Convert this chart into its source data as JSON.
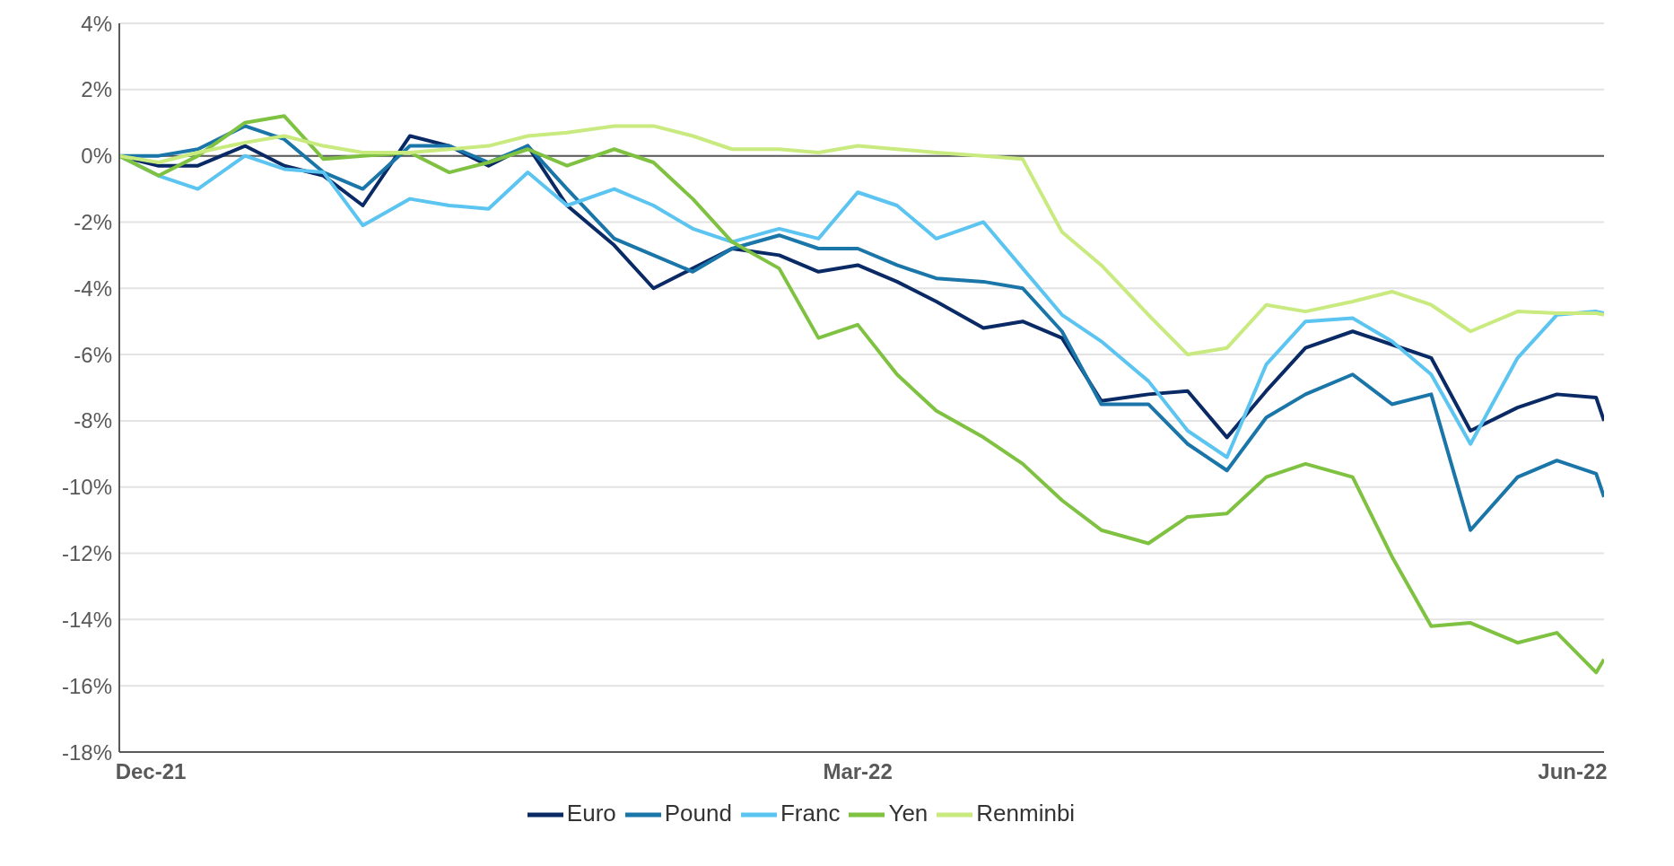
{
  "chart_data": {
    "type": "line",
    "x": [
      "2021-12-27",
      "2022-01-01",
      "2022-01-06",
      "2022-01-12",
      "2022-01-17",
      "2022-01-22",
      "2022-01-27",
      "2022-02-02",
      "2022-02-07",
      "2022-02-12",
      "2022-02-17",
      "2022-02-22",
      "2022-02-28",
      "2022-03-05",
      "2022-03-10",
      "2022-03-15",
      "2022-03-21",
      "2022-03-26",
      "2022-03-31",
      "2022-04-05",
      "2022-04-10",
      "2022-04-16",
      "2022-04-21",
      "2022-04-26",
      "2022-05-01",
      "2022-05-07",
      "2022-05-12",
      "2022-05-17",
      "2022-05-22",
      "2022-05-27",
      "2022-06-02",
      "2022-06-07",
      "2022-06-12",
      "2022-06-17",
      "2022-06-23",
      "2022-06-28",
      "2022-07-03",
      "2022-07-04"
    ],
    "series": [
      {
        "name": "Euro",
        "color": "#0a2a66",
        "values": [
          0,
          -0.3,
          -0.3,
          0.3,
          -0.3,
          -0.6,
          -1.5,
          0.6,
          0.3,
          -0.3,
          0.3,
          -1.5,
          -2.7,
          -4.0,
          -3.4,
          -2.8,
          -3.0,
          -3.5,
          -3.3,
          -3.8,
          -4.4,
          -5.2,
          -5.0,
          -5.5,
          -7.4,
          -7.2,
          -7.1,
          -8.5,
          -7.1,
          -5.8,
          -5.3,
          -5.7,
          -6.1,
          -8.3,
          -7.6,
          -7.2,
          -7.3,
          -8.0
        ]
      },
      {
        "name": "Pound",
        "color": "#1a75a8",
        "values": [
          0,
          0,
          0.2,
          0.9,
          0.5,
          -0.5,
          -1.0,
          0.3,
          0.3,
          -0.2,
          0.3,
          -1.0,
          -2.5,
          -3.0,
          -3.5,
          -2.8,
          -2.4,
          -2.8,
          -2.8,
          -3.3,
          -3.7,
          -3.8,
          -4.0,
          -5.3,
          -7.5,
          -7.5,
          -8.7,
          -9.5,
          -7.9,
          -7.2,
          -6.6,
          -7.5,
          -7.2,
          -11.3,
          -9.7,
          -9.2,
          -9.6,
          -10.3
        ]
      },
      {
        "name": "Franc",
        "color": "#5bc4f0",
        "values": [
          0,
          -0.6,
          -1.0,
          0,
          -0.4,
          -0.5,
          -2.1,
          -1.3,
          -1.5,
          -1.6,
          -0.5,
          -1.5,
          -1.0,
          -1.5,
          -2.2,
          -2.6,
          -2.2,
          -2.5,
          -1.1,
          -1.5,
          -2.5,
          -2.0,
          -3.4,
          -4.8,
          -5.6,
          -6.8,
          -8.3,
          -9.1,
          -6.3,
          -5.0,
          -4.9,
          -5.6,
          -6.6,
          -8.7,
          -6.1,
          -4.8,
          -4.7,
          -4.75
        ]
      },
      {
        "name": "Yen",
        "color": "#7fc241",
        "values": [
          0,
          -0.6,
          0,
          1.0,
          1.2,
          -0.1,
          0,
          0.1,
          -0.5,
          -0.2,
          0.2,
          -0.3,
          0.2,
          -0.2,
          -1.3,
          -2.6,
          -3.4,
          -5.5,
          -5.1,
          -6.6,
          -7.7,
          -8.5,
          -9.3,
          -10.4,
          -11.3,
          -11.7,
          -10.9,
          -10.8,
          -9.7,
          -9.3,
          -9.7,
          -12.1,
          -14.2,
          -14.1,
          -14.7,
          -14.4,
          -15.6,
          -15.2
        ]
      },
      {
        "name": "Renminbi",
        "color": "#c8ea7f",
        "values": [
          0,
          -0.2,
          0.1,
          0.4,
          0.6,
          0.3,
          0.1,
          0.1,
          0.2,
          0.3,
          0.6,
          0.7,
          0.9,
          0.9,
          0.6,
          0.2,
          0.2,
          0.1,
          0.3,
          0.2,
          0.1,
          0,
          -0.1,
          -2.3,
          -3.3,
          -4.8,
          -6.0,
          -5.8,
          -4.5,
          -4.7,
          -4.4,
          -4.1,
          -4.5,
          -5.3,
          -4.7,
          -4.75,
          -4.75,
          -4.8
        ]
      }
    ],
    "xlim": [
      "2021-12-27",
      "2022-07-04"
    ],
    "xticks": [
      {
        "value": "2021-12-31",
        "label": "Dec-21"
      },
      {
        "value": "2022-03-31",
        "label": "Mar-22"
      },
      {
        "value": "2022-06-30",
        "label": "Jun-22"
      }
    ],
    "ylim": [
      -18,
      4
    ],
    "yticks": [
      {
        "value": -18,
        "label": "-18%"
      },
      {
        "value": -16,
        "label": "-16%"
      },
      {
        "value": -14,
        "label": "-14%"
      },
      {
        "value": -12,
        "label": "-12%"
      },
      {
        "value": -10,
        "label": "-10%"
      },
      {
        "value": -8,
        "label": "-8%"
      },
      {
        "value": -6,
        "label": "-6%"
      },
      {
        "value": -4,
        "label": "-4%"
      },
      {
        "value": -2,
        "label": "-2%"
      },
      {
        "value": 0,
        "label": "0%"
      },
      {
        "value": 2,
        "label": "2%"
      },
      {
        "value": 4,
        "label": "4%"
      }
    ],
    "ref_lines": [
      {
        "axis": "y",
        "value": 0,
        "color": "#595959"
      }
    ],
    "grid": "y",
    "legend": "bottom",
    "marker": "none",
    "line_style": "solid"
  }
}
